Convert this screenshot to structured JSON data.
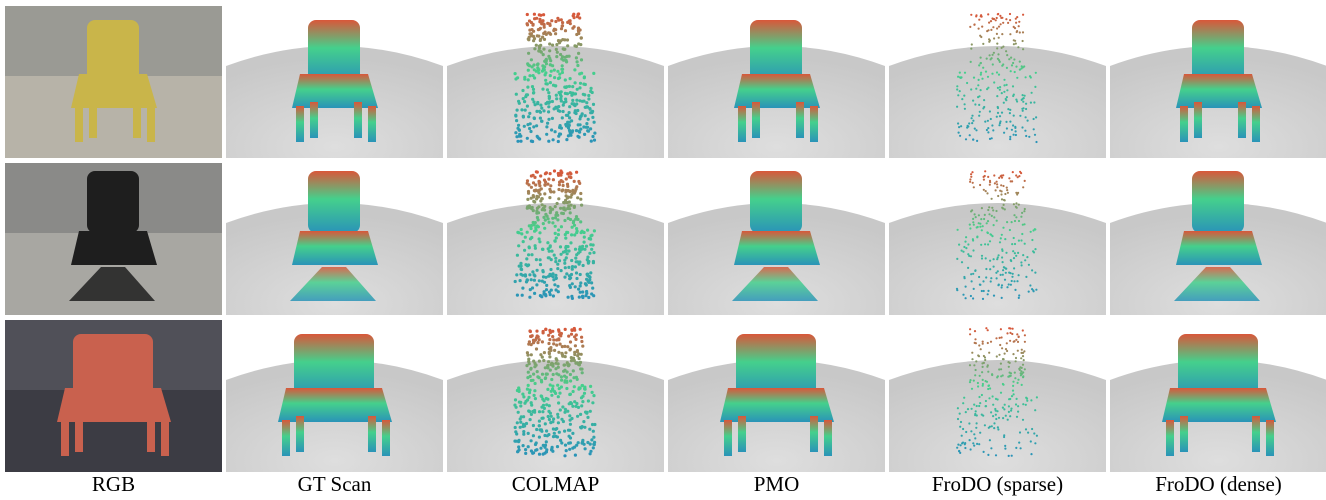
{
  "columns": [
    "RGB",
    "GT Scan",
    "COLMAP",
    "PMO",
    "FroDO (sparse)",
    "FroDO (dense)"
  ]
}
